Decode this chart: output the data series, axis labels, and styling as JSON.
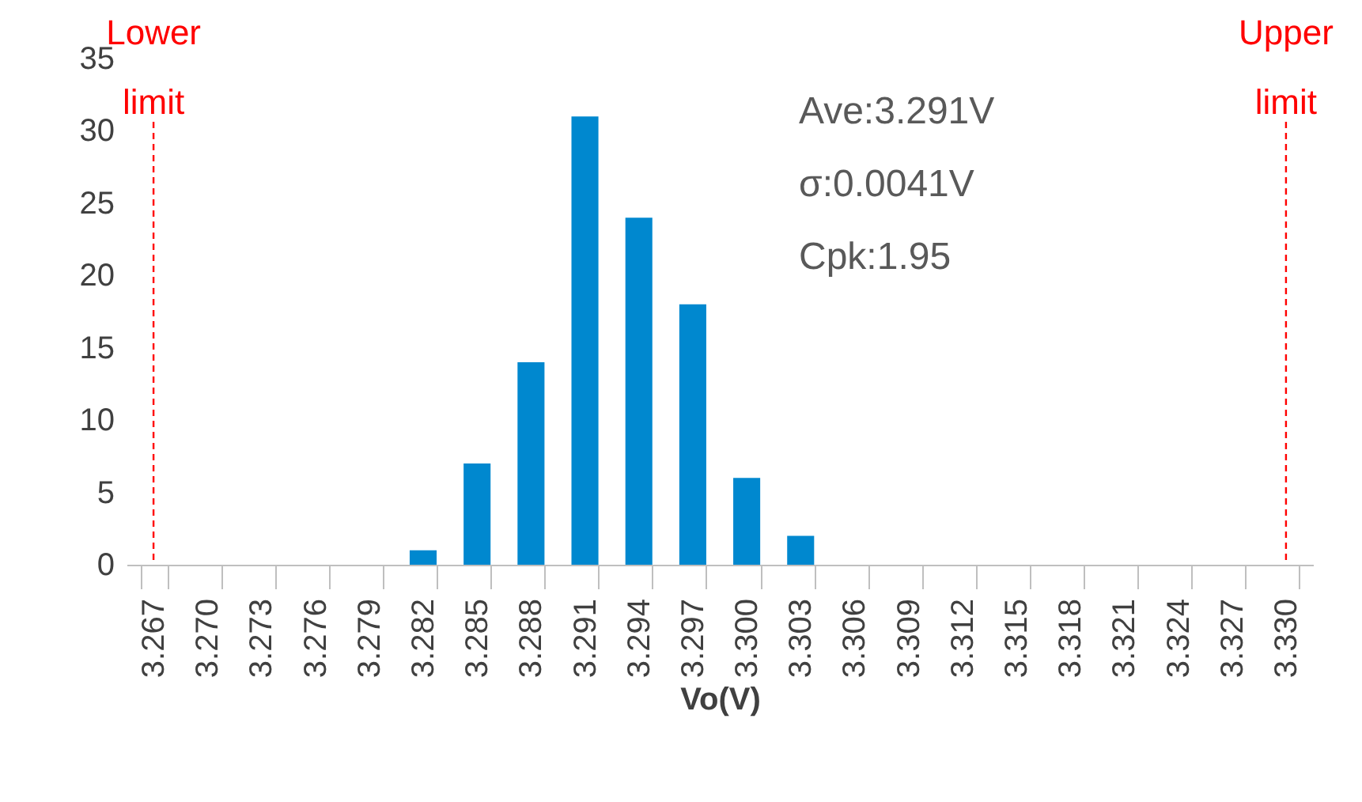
{
  "chart_data": {
    "type": "bar",
    "xlabel": "Vo(V)",
    "categories": [
      "3.267",
      "3.270",
      "3.273",
      "3.276",
      "3.279",
      "3.282",
      "3.285",
      "3.288",
      "3.291",
      "3.294",
      "3.297",
      "3.300",
      "3.303",
      "3.306",
      "3.309",
      "3.312",
      "3.315",
      "3.318",
      "3.321",
      "3.324",
      "3.327",
      "3.330"
    ],
    "values": [
      0,
      0,
      0,
      0,
      0,
      1,
      7,
      14,
      31,
      24,
      18,
      6,
      2,
      0,
      0,
      0,
      0,
      0,
      0,
      0,
      0,
      0
    ],
    "color": "#0088cf",
    "ylim": [
      0,
      35
    ],
    "yticks": [
      0,
      5,
      10,
      15,
      20,
      25,
      30,
      35
    ],
    "grid": false,
    "ref_lines": [
      {
        "axis": "x",
        "value": "3.267",
        "label": "Lower limit",
        "color": "#ff0000",
        "line_style": "dashed"
      },
      {
        "axis": "x",
        "value": "3.330",
        "label": "Upper limit",
        "color": "#ff0000",
        "line_style": "dashed"
      }
    ],
    "annotations": [
      "Ave:3.291V",
      "σ:0.0041V",
      "Cpk:1.95"
    ]
  }
}
